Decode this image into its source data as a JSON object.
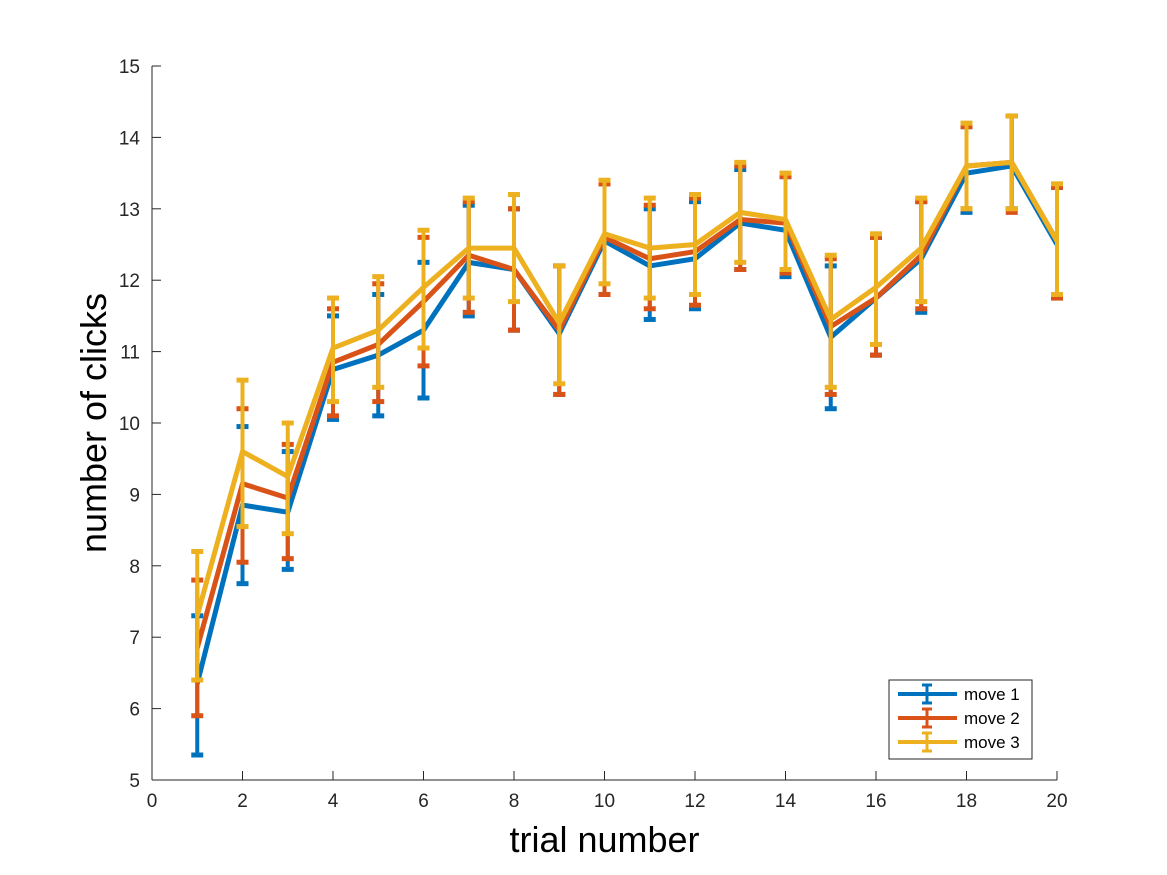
{
  "chart_data": {
    "type": "line",
    "error_bars": true,
    "title": "",
    "xlabel": "trial number",
    "ylabel": "number of clicks",
    "xlim": [
      0,
      20
    ],
    "ylim": [
      5,
      15
    ],
    "x_ticks": [
      0,
      2,
      4,
      6,
      8,
      10,
      12,
      14,
      16,
      18,
      20
    ],
    "y_ticks": [
      5,
      6,
      7,
      8,
      9,
      10,
      11,
      12,
      13,
      14,
      15
    ],
    "grid": false,
    "legend_position": "bottom-right",
    "x": [
      1,
      2,
      3,
      4,
      5,
      6,
      7,
      8,
      9,
      10,
      11,
      12,
      13,
      14,
      15,
      16,
      17,
      18,
      19,
      20
    ],
    "series": [
      {
        "name": "move 1",
        "color": "#0072BD",
        "values": [
          6.35,
          8.85,
          8.75,
          10.75,
          10.95,
          11.3,
          12.25,
          12.15,
          11.25,
          12.55,
          12.2,
          12.3,
          12.8,
          12.7,
          11.2,
          11.75,
          12.3,
          13.5,
          13.6,
          12.5
        ],
        "lower": [
          5.35,
          7.75,
          7.95,
          10.05,
          10.1,
          10.35,
          11.5,
          11.3,
          10.4,
          11.8,
          11.45,
          11.6,
          12.15,
          12.05,
          10.2,
          10.95,
          11.55,
          12.95,
          13.0,
          11.75
        ],
        "upper": [
          7.3,
          9.95,
          9.6,
          11.5,
          11.8,
          12.25,
          13.05,
          13.0,
          12.2,
          13.35,
          13.0,
          13.1,
          13.55,
          13.45,
          12.2,
          12.6,
          13.1,
          14.15,
          14.3,
          13.3
        ]
      },
      {
        "name": "move 2",
        "color": "#D95319",
        "values": [
          6.85,
          9.15,
          8.95,
          10.85,
          11.1,
          11.7,
          12.35,
          12.15,
          11.3,
          12.6,
          12.3,
          12.4,
          12.85,
          12.8,
          11.35,
          11.75,
          12.35,
          13.6,
          13.65,
          12.55
        ],
        "lower": [
          5.9,
          8.05,
          8.1,
          10.1,
          10.3,
          10.8,
          11.55,
          11.3,
          10.4,
          11.8,
          11.6,
          11.65,
          12.15,
          12.1,
          10.4,
          10.95,
          11.6,
          13.0,
          12.95,
          11.75
        ],
        "upper": [
          7.8,
          10.2,
          9.7,
          11.6,
          11.95,
          12.6,
          13.1,
          13.0,
          12.2,
          13.35,
          13.05,
          13.15,
          13.6,
          13.45,
          12.3,
          12.6,
          13.1,
          14.15,
          14.3,
          13.3
        ]
      },
      {
        "name": "move 3",
        "color": "#EDB120",
        "values": [
          7.3,
          9.6,
          9.25,
          11.05,
          11.3,
          11.9,
          12.45,
          12.45,
          11.4,
          12.65,
          12.45,
          12.5,
          12.95,
          12.85,
          11.45,
          11.9,
          12.45,
          13.6,
          13.65,
          12.55
        ],
        "lower": [
          6.4,
          8.55,
          8.45,
          10.3,
          10.5,
          11.05,
          11.75,
          11.7,
          10.55,
          11.95,
          11.75,
          11.8,
          12.25,
          12.15,
          10.5,
          11.1,
          11.7,
          13.0,
          13.0,
          11.8
        ],
        "upper": [
          8.2,
          10.6,
          10.0,
          11.75,
          12.05,
          12.7,
          13.15,
          13.2,
          12.2,
          13.4,
          13.15,
          13.2,
          13.65,
          13.5,
          12.35,
          12.65,
          13.15,
          14.2,
          14.3,
          13.35
        ]
      }
    ]
  }
}
